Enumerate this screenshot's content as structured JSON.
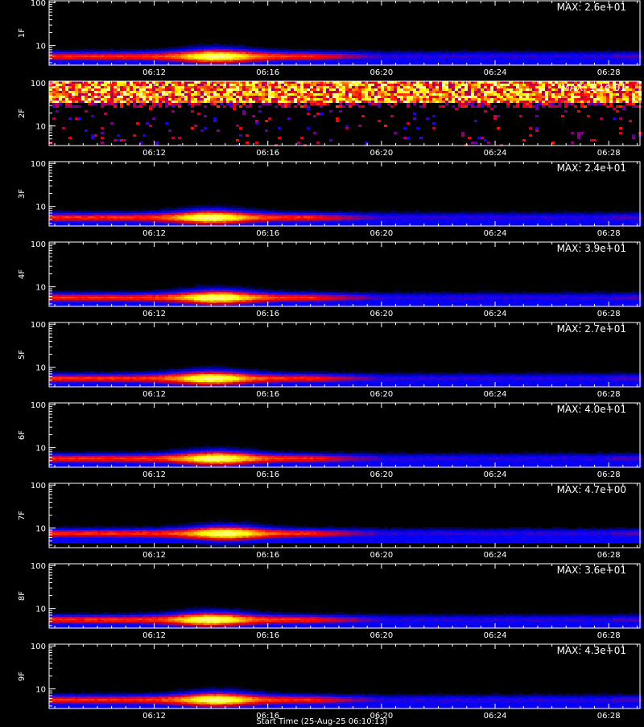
{
  "chart_data": {
    "type": "heatmap",
    "x_tick_labels": [
      "06:12",
      "06:16",
      "06:20",
      "06:24",
      "06:28"
    ],
    "x_ticks_minutes": [
      12,
      16,
      20,
      24,
      28
    ],
    "x_range_minutes": [
      8.3,
      29.1
    ],
    "y_scale": "log",
    "y_range": [
      3.5,
      110
    ],
    "y_tick_labels": [
      "10",
      "100"
    ],
    "y_tick_values": [
      10,
      100
    ],
    "x_title": "Start Time (25-Aug-25 06:10:13)",
    "colormap": [
      "#000000",
      "#0000ff",
      "#ff0000",
      "#ffff00",
      "#ffffff"
    ],
    "panels": [
      {
        "label": "1F",
        "max_text": "MAX: 2.6e+01",
        "pattern": "band",
        "band_center": 5.6,
        "peak_minute": 14.2
      },
      {
        "label": "2F",
        "max_text": "MAX: 1.1e-01",
        "pattern": "noise"
      },
      {
        "label": "3F",
        "max_text": "MAX: 2.4e+01",
        "pattern": "band",
        "band_center": 5.5,
        "peak_minute": 14.0
      },
      {
        "label": "4F",
        "max_text": "MAX: 3.9e+01",
        "pattern": "band",
        "band_center": 5.6,
        "peak_minute": 14.2
      },
      {
        "label": "5F",
        "max_text": "MAX: 2.7e+01",
        "pattern": "band",
        "band_center": 5.5,
        "peak_minute": 14.0
      },
      {
        "label": "6F",
        "max_text": "MAX: 4.0e+01",
        "pattern": "band",
        "band_center": 5.6,
        "peak_minute": 14.2
      },
      {
        "label": "7F",
        "max_text": "MAX: 4.7e+00",
        "pattern": "band",
        "band_center": 7.5,
        "peak_minute": 14.5
      },
      {
        "label": "8F",
        "max_text": "MAX: 3.6e+01",
        "pattern": "band",
        "band_center": 5.5,
        "peak_minute": 14.0
      },
      {
        "label": "9F",
        "max_text": "MAX: 4.3e+01",
        "pattern": "band",
        "band_center": 5.6,
        "peak_minute": 14.2
      }
    ]
  }
}
